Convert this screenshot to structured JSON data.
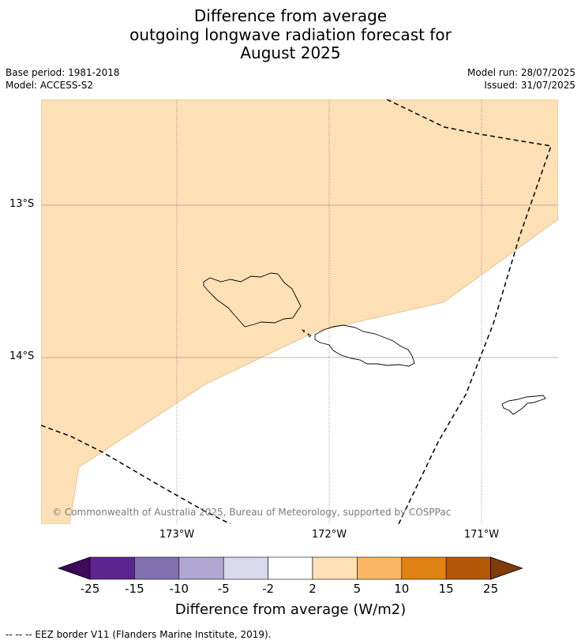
{
  "title": {
    "line1": "Difference from average",
    "line2": "outgoing longwave radiation forecast for",
    "line3": "August 2025"
  },
  "meta": {
    "base_period": "Base period: 1981-2018",
    "model": "Model: ACCESS-S2",
    "model_run": "Model run: 28/07/2025",
    "issued": "Issued: 31/07/2025"
  },
  "map": {
    "lat_labels": [
      "13°S",
      "14°S"
    ],
    "lon_labels": [
      "173°W",
      "172°W",
      "171°W"
    ],
    "fill_color": "#fde0b6",
    "fill_category": "2 to 5",
    "copyright": "© Commonwealth of Australia 2025, Bureau of Meteorology, supported by COSPPac"
  },
  "colorbar": {
    "ticks": [
      "-25",
      "-15",
      "-10",
      "-5",
      "-2",
      "2",
      "5",
      "10",
      "15",
      "25"
    ],
    "colors": [
      "#3f0a5a",
      "#5b2590",
      "#8070b0",
      "#b1a7d3",
      "#d9d8ec",
      "#ffffff",
      "#fde0b6",
      "#fbb665",
      "#e08214",
      "#b35806",
      "#7f3b08"
    ],
    "label": "Difference from average (W/m2)"
  },
  "footnote": "--  --  -- EEZ border V11 (Flanders Marine Institute, 2019)."
}
